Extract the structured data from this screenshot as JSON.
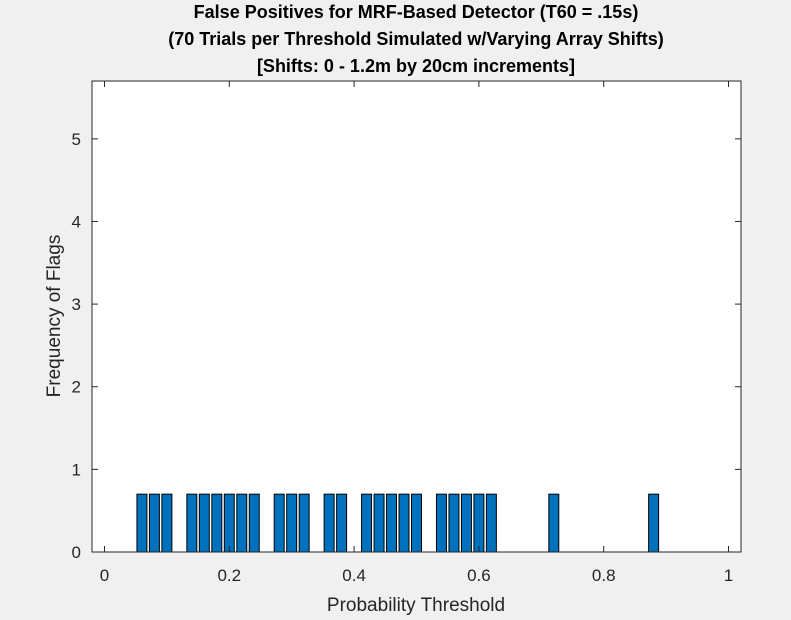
{
  "chart_data": {
    "type": "bar",
    "title": [
      "False Positives for MRF-Based Detector (T60 = .15s)",
      "(70 Trials per Threshold Simulated w/Varying Array Shifts)",
      "[Shifts: 0 - 1.2m by 20cm increments]"
    ],
    "xlabel": "Probability Threshold",
    "ylabel": "Frequency of Flags",
    "xlim": [
      -0.02,
      1.02
    ],
    "ylim": [
      0,
      5.7
    ],
    "xticks": [
      0,
      0.2,
      0.4,
      0.6,
      0.8,
      1
    ],
    "xtick_labels": [
      "0",
      "0.2",
      "0.4",
      "0.6",
      "0.8",
      "1"
    ],
    "yticks": [
      0,
      1,
      2,
      3,
      4,
      5
    ],
    "ytick_labels": [
      "0",
      "1",
      "2",
      "3",
      "4",
      "5"
    ],
    "bar_width": 0.016,
    "x": [
      0.06,
      0.08,
      0.1,
      0.14,
      0.16,
      0.18,
      0.2,
      0.22,
      0.24,
      0.28,
      0.3,
      0.32,
      0.36,
      0.38,
      0.42,
      0.44,
      0.46,
      0.48,
      0.5,
      0.54,
      0.56,
      0.58,
      0.6,
      0.62,
      0.72,
      0.88
    ],
    "values": [
      0.7,
      0.7,
      0.7,
      0.7,
      0.7,
      0.7,
      0.7,
      0.7,
      0.7,
      0.7,
      0.7,
      0.7,
      0.7,
      0.7,
      0.7,
      0.7,
      0.7,
      0.7,
      0.7,
      0.7,
      0.7,
      0.7,
      0.7,
      0.7,
      0.7,
      0.7
    ],
    "grid": false,
    "box": true
  },
  "colors": {
    "bar_fill": "#0072bd",
    "bar_edge": "#000000",
    "figure_bg": "#f0f0f0",
    "axes_bg": "#ffffff",
    "axis_color": "#262626"
  }
}
